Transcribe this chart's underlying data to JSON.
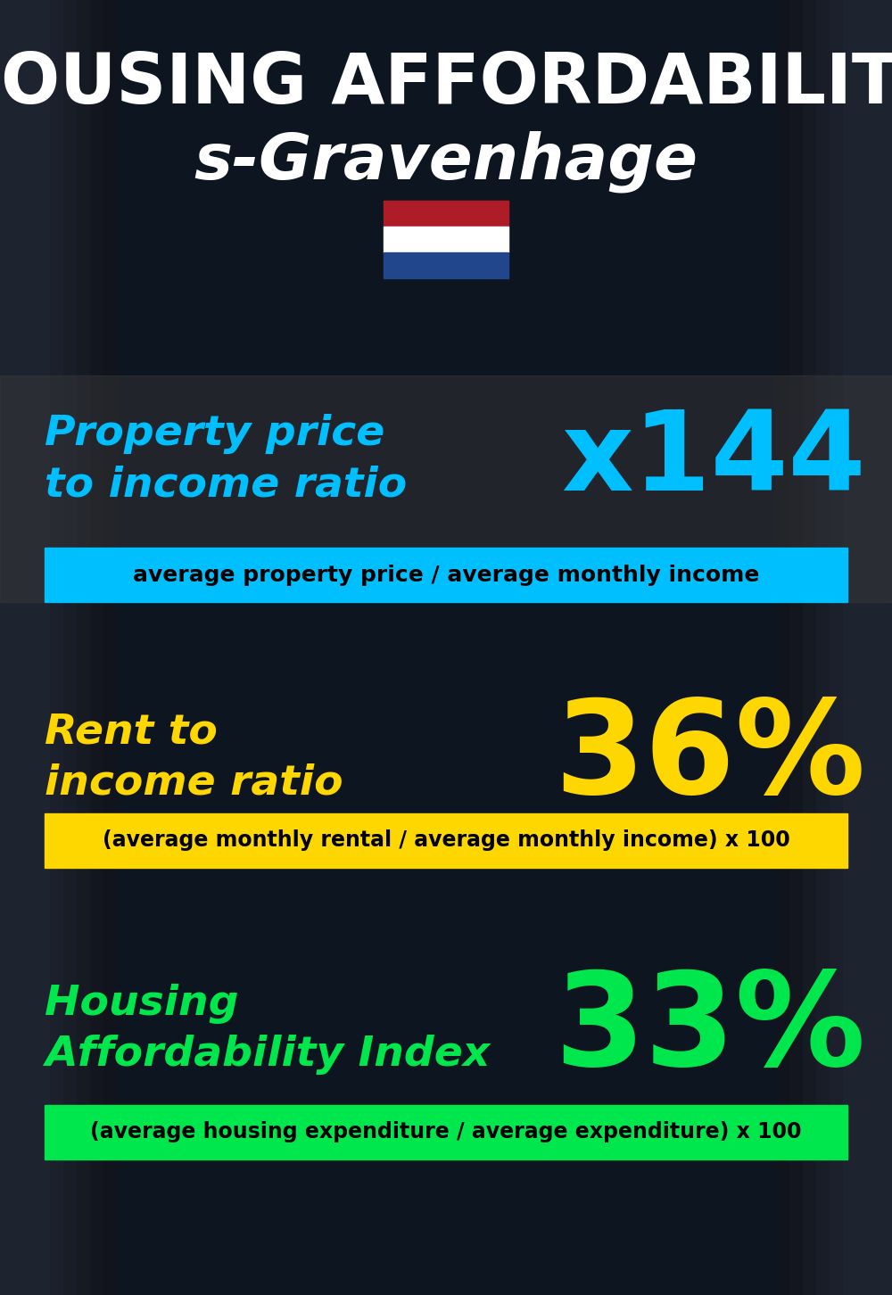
{
  "title_line1": "HOUSING AFFORDABILITY",
  "title_line2": "s-Gravenhage",
  "bg_color": "#0d1520",
  "section1_label": "Property price\nto income ratio",
  "section1_value": "x144",
  "section1_label_color": "#00bfff",
  "section1_value_color": "#00bfff",
  "section1_banner_text": "average property price / average monthly income",
  "section1_banner_bg": "#00bfff",
  "section2_label": "Rent to\nincome ratio",
  "section2_value": "36%",
  "section2_label_color": "#ffd700",
  "section2_value_color": "#ffd700",
  "section2_banner_text": "(average monthly rental / average monthly income) x 100",
  "section2_banner_bg": "#ffd700",
  "section3_label": "Housing\nAffordability Index",
  "section3_value": "33%",
  "section3_label_color": "#00e64d",
  "section3_value_color": "#00e64d",
  "section3_banner_text": "(average housing expenditure / average expenditure) x 100",
  "section3_banner_bg": "#00e64d",
  "title_color": "#ffffff",
  "flag_colors": [
    "#AE1C28",
    "#ffffff",
    "#21468B"
  ],
  "figsize": [
    10.0,
    14.52
  ],
  "dpi": 100
}
